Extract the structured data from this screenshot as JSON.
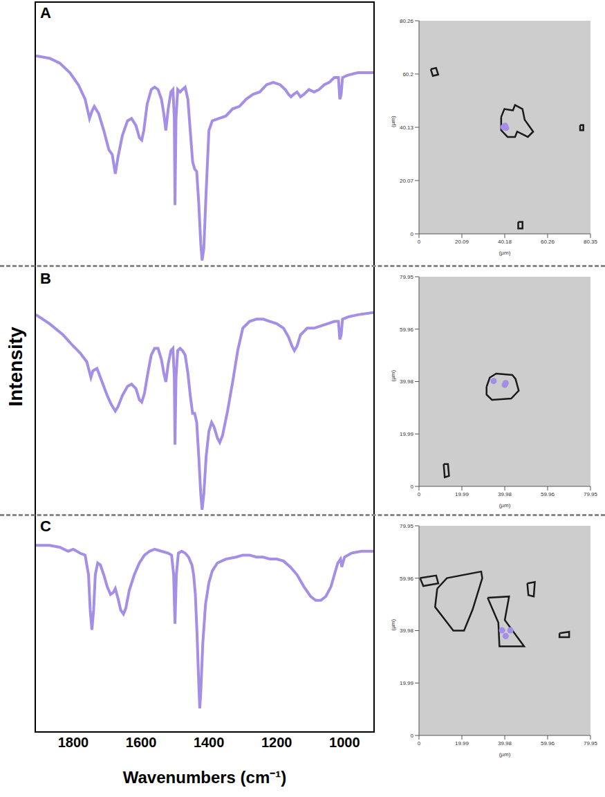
{
  "chart_data": [
    {
      "type": "line",
      "title": "A",
      "color": "#a48ee6",
      "tick_labels": false,
      "xlim": [
        1910,
        915
      ],
      "ylim": [
        0,
        100
      ],
      "x": [
        1910,
        1870,
        1840,
        1810,
        1785,
        1765,
        1752,
        1745,
        1738,
        1725,
        1710,
        1695,
        1685,
        1676,
        1668,
        1655,
        1640,
        1628,
        1615,
        1605,
        1598,
        1592,
        1582,
        1570,
        1560,
        1550,
        1540,
        1533,
        1527,
        1520,
        1512,
        1506,
        1502,
        1500,
        1497,
        1492,
        1485,
        1478,
        1470,
        1462,
        1455,
        1448,
        1442,
        1436,
        1430,
        1424,
        1420,
        1415,
        1408,
        1400,
        1390,
        1370,
        1350,
        1330,
        1310,
        1290,
        1270,
        1250,
        1230,
        1210,
        1190,
        1175,
        1165,
        1158,
        1150,
        1140,
        1130,
        1120,
        1105,
        1090,
        1075,
        1060,
        1045,
        1030,
        1018,
        1014,
        1010,
        1006,
        990,
        960,
        915
      ],
      "values": [
        86,
        85,
        83,
        79,
        74,
        68,
        60,
        63,
        65,
        62,
        55,
        47,
        45,
        37,
        44,
        53,
        59,
        60,
        57,
        52,
        51,
        55,
        66,
        72,
        73,
        72,
        68,
        62,
        55,
        64,
        71,
        72,
        60,
        24,
        60,
        72,
        71,
        72,
        73,
        68,
        55,
        42,
        39,
        38,
        25,
        8,
        1,
        6,
        30,
        55,
        59,
        60,
        61,
        64,
        65,
        68,
        70,
        71,
        74,
        75,
        74,
        72,
        70,
        69,
        70,
        71,
        69,
        70,
        72,
        71,
        72,
        74,
        75,
        77,
        77,
        68,
        70,
        77,
        78,
        79,
        79
      ]
    },
    {
      "type": "line",
      "title": "B",
      "ylabel": "Intensity",
      "color": "#a48ee6",
      "tick_labels": false,
      "xlim": [
        1910,
        915
      ],
      "ylim": [
        0,
        100
      ],
      "x": [
        1910,
        1870,
        1830,
        1800,
        1780,
        1760,
        1748,
        1742,
        1730,
        1715,
        1700,
        1688,
        1676,
        1668,
        1655,
        1640,
        1628,
        1615,
        1605,
        1598,
        1590,
        1580,
        1570,
        1560,
        1550,
        1540,
        1533,
        1527,
        1520,
        1512,
        1506,
        1502,
        1500,
        1497,
        1492,
        1485,
        1478,
        1470,
        1462,
        1455,
        1448,
        1442,
        1436,
        1430,
        1424,
        1420,
        1415,
        1408,
        1400,
        1392,
        1385,
        1375,
        1368,
        1360,
        1345,
        1330,
        1315,
        1300,
        1280,
        1260,
        1240,
        1220,
        1200,
        1180,
        1165,
        1155,
        1148,
        1140,
        1130,
        1110,
        1090,
        1070,
        1050,
        1030,
        1018,
        1014,
        1010,
        1006,
        990,
        960,
        915
      ],
      "values": [
        88,
        84,
        79,
        74,
        71,
        67,
        60,
        63,
        64,
        58,
        52,
        48,
        45,
        47,
        52,
        56,
        57,
        55,
        50,
        49,
        53,
        62,
        70,
        73,
        73,
        68,
        62,
        58,
        66,
        72,
        73,
        60,
        30,
        60,
        72,
        73,
        72,
        70,
        62,
        52,
        44,
        44,
        40,
        25,
        8,
        1,
        8,
        25,
        36,
        40,
        38,
        33,
        31,
        34,
        45,
        58,
        72,
        82,
        85,
        86,
        86,
        85,
        84,
        82,
        78,
        74,
        72,
        74,
        79,
        82,
        82,
        83,
        84,
        85,
        85,
        77,
        79,
        86,
        87,
        88,
        89
      ]
    },
    {
      "type": "line",
      "title": "C",
      "xlabel": "Wavenumbers (cm⁻¹)",
      "color": "#a48ee6",
      "tick_labels": "x",
      "xlim": [
        1910,
        915
      ],
      "xticks": [
        1800,
        1600,
        1400,
        1200,
        1000
      ],
      "ylim": [
        0,
        100
      ],
      "x": [
        1910,
        1870,
        1840,
        1815,
        1800,
        1780,
        1765,
        1755,
        1750,
        1745,
        1740,
        1735,
        1728,
        1720,
        1710,
        1700,
        1690,
        1682,
        1676,
        1668,
        1660,
        1652,
        1645,
        1635,
        1620,
        1605,
        1590,
        1575,
        1560,
        1540,
        1520,
        1510,
        1504,
        1500,
        1496,
        1490,
        1480,
        1470,
        1460,
        1450,
        1445,
        1440,
        1435,
        1430,
        1427,
        1424,
        1418,
        1410,
        1400,
        1390,
        1375,
        1350,
        1320,
        1300,
        1280,
        1260,
        1240,
        1220,
        1200,
        1180,
        1160,
        1140,
        1120,
        1100,
        1085,
        1070,
        1055,
        1040,
        1030,
        1020,
        1012,
        1008,
        1005,
        1000,
        980,
        950,
        915
      ],
      "values": [
        95,
        95,
        94,
        92,
        93,
        91,
        90,
        80,
        62,
        52,
        62,
        80,
        86,
        85,
        80,
        74,
        70,
        71,
        73,
        68,
        62,
        60,
        63,
        72,
        80,
        86,
        90,
        92,
        93,
        92,
        91,
        90,
        80,
        55,
        80,
        91,
        92,
        91,
        89,
        85,
        80,
        70,
        50,
        25,
        12,
        20,
        45,
        65,
        76,
        82,
        86,
        88,
        89,
        90,
        90,
        89,
        89,
        88,
        88,
        87,
        84,
        80,
        74,
        69,
        67,
        67,
        69,
        74,
        80,
        86,
        88,
        84,
        86,
        89,
        91,
        92,
        92
      ]
    },
    {
      "type": "scatter",
      "xlabel": "(µm)",
      "ylabel": "(µm)",
      "color": "#a48ee6",
      "xlim": [
        0,
        80.35
      ],
      "xticks": [
        0,
        20.09,
        40.18,
        60.26,
        80.35
      ],
      "ylim": [
        0,
        80.26
      ],
      "yticks": [
        0,
        20.07,
        40.13,
        60.2,
        80.26
      ],
      "points": {
        "x": [
          39.6,
          40.3,
          40.8
        ],
        "y": [
          40.2,
          40.7,
          39.9
        ]
      },
      "particles": [
        [
          [
            38.5,
            44
          ],
          [
            40,
            47
          ],
          [
            44,
            46.5
          ],
          [
            45,
            48.5
          ],
          [
            48.5,
            47
          ],
          [
            49.5,
            43
          ],
          [
            53.5,
            38.5
          ],
          [
            51,
            36.5
          ],
          [
            46,
            38.5
          ],
          [
            45,
            36.5
          ],
          [
            41.5,
            36.5
          ],
          [
            38.5,
            39
          ],
          [
            38.5,
            44
          ]
        ],
        [
          [
            5.5,
            62
          ],
          [
            8,
            62.5
          ],
          [
            9,
            60
          ],
          [
            6.5,
            59.5
          ],
          [
            5.5,
            62
          ]
        ],
        [
          [
            46.5,
            4.5
          ],
          [
            48.5,
            4.5
          ],
          [
            48.5,
            2
          ],
          [
            46.5,
            2
          ],
          [
            46.5,
            4.5
          ]
        ],
        [
          [
            75.5,
            41
          ],
          [
            77,
            41
          ],
          [
            77,
            39
          ],
          [
            75.5,
            39
          ],
          [
            75.5,
            41
          ]
        ]
      ]
    },
    {
      "type": "scatter",
      "xlabel": "(µm)",
      "ylabel": "(µm)",
      "color": "#a48ee6",
      "xlim": [
        0,
        79.95
      ],
      "xticks": [
        0,
        19.99,
        39.98,
        59.96,
        79.95
      ],
      "ylim": [
        0,
        79.95
      ],
      "yticks": [
        0,
        19.99,
        39.98,
        59.96,
        79.95
      ],
      "points": {
        "x": [
          34.8,
          40,
          40.4
        ],
        "y": [
          40.2,
          38.7,
          39.4
        ]
      },
      "particles": [
        [
          [
            31.5,
            38
          ],
          [
            33,
            41.5
          ],
          [
            36,
            43
          ],
          [
            43.5,
            42.5
          ],
          [
            45,
            41
          ],
          [
            46.5,
            36.5
          ],
          [
            43,
            33.5
          ],
          [
            34,
            33
          ],
          [
            31.5,
            35
          ],
          [
            31.5,
            38
          ]
        ],
        [
          [
            11.5,
            8.5
          ],
          [
            13.5,
            8.5
          ],
          [
            14,
            4
          ],
          [
            12,
            3.5
          ],
          [
            11.5,
            8.5
          ]
        ]
      ]
    },
    {
      "type": "scatter",
      "xlabel": "(µm)",
      "ylabel": "(µm)",
      "color": "#a48ee6",
      "xlim": [
        0,
        79.95
      ],
      "xticks": [
        0,
        19.99,
        39.98,
        59.96,
        79.95
      ],
      "ylim": [
        0,
        79.95
      ],
      "yticks": [
        0,
        19.99,
        39.98,
        59.96,
        79.95
      ],
      "points": {
        "x": [
          38.7,
          42.6,
          40.4
        ],
        "y": [
          40.1,
          40.1,
          37.9
        ]
      },
      "particles": [
        [
          [
            8.5,
            56
          ],
          [
            13,
            60
          ],
          [
            29,
            62.5
          ],
          [
            29.5,
            60
          ],
          [
            25,
            48
          ],
          [
            21,
            40
          ],
          [
            16,
            40
          ],
          [
            7.5,
            49
          ],
          [
            8.5,
            56
          ]
        ],
        [
          [
            32,
            52.5
          ],
          [
            42,
            53
          ],
          [
            40,
            44
          ],
          [
            49,
            34
          ],
          [
            37.5,
            34
          ],
          [
            37,
            43
          ],
          [
            32,
            52.5
          ]
        ],
        [
          [
            0.5,
            60
          ],
          [
            8,
            61
          ],
          [
            9,
            58
          ],
          [
            2,
            57
          ],
          [
            0.5,
            60
          ]
        ],
        [
          [
            50.5,
            58
          ],
          [
            54,
            58.5
          ],
          [
            53.5,
            53
          ],
          [
            51,
            53.5
          ],
          [
            50.5,
            58
          ]
        ],
        [
          [
            65.5,
            39
          ],
          [
            70,
            39.5
          ],
          [
            70,
            37.5
          ],
          [
            65.5,
            37.5
          ],
          [
            65.5,
            39
          ]
        ]
      ]
    }
  ]
}
